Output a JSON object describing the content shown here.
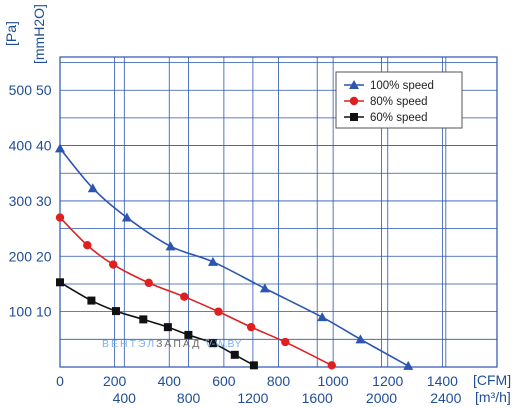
{
  "chart_data": {
    "type": "line",
    "xlabel_primary": "[CFM]",
    "xlabel_secondary": "[m³/h]",
    "ylabel_primary": "[Pa]",
    "ylabel_secondary": "[mmH2O]",
    "xlim_cfm": [
      0,
      1600
    ],
    "ylim_pa": [
      0,
      560
    ],
    "grid": true,
    "legend_position": "top-right",
    "x_ticks_cfm": [
      "0",
      "200",
      "400",
      "600",
      "800",
      "1000",
      "1200",
      "1400"
    ],
    "x_ticks_m3h": [
      "400",
      "800",
      "1200",
      "1600",
      "2000",
      "2400"
    ],
    "y_ticks_pa": [
      "100",
      "200",
      "300",
      "400",
      "500"
    ],
    "y_ticks_mmh2o": [
      "10",
      "20",
      "30",
      "40",
      "50"
    ],
    "series": [
      {
        "name": "100%  speed",
        "color": "#2a55b0",
        "marker": "triangle",
        "x": [
          0,
          120,
          245,
          405,
          560,
          750,
          960,
          1100,
          1275
        ],
        "y": [
          395,
          323,
          270,
          218,
          190,
          142,
          90,
          50,
          2
        ]
      },
      {
        "name": "80%  speed",
        "color": "#e02020",
        "marker": "circle",
        "x": [
          0,
          100,
          195,
          325,
          455,
          580,
          700,
          825,
          995
        ],
        "y": [
          270,
          220,
          185,
          152,
          127,
          100,
          72,
          45,
          3
        ]
      },
      {
        "name": "60%  speed",
        "color": "#111111",
        "marker": "square",
        "x": [
          0,
          115,
          205,
          305,
          395,
          470,
          560,
          640,
          710
        ],
        "y": [
          153,
          120,
          101,
          86,
          72,
          58,
          43,
          22,
          3
        ]
      }
    ]
  },
  "watermark": {
    "part1": "ВЕНТЭЛ",
    "part2": "ЗАПАД",
    "part3": "V-W.BY",
    "color1": "#7fb2e6",
    "color2": "#6b6b6b"
  }
}
